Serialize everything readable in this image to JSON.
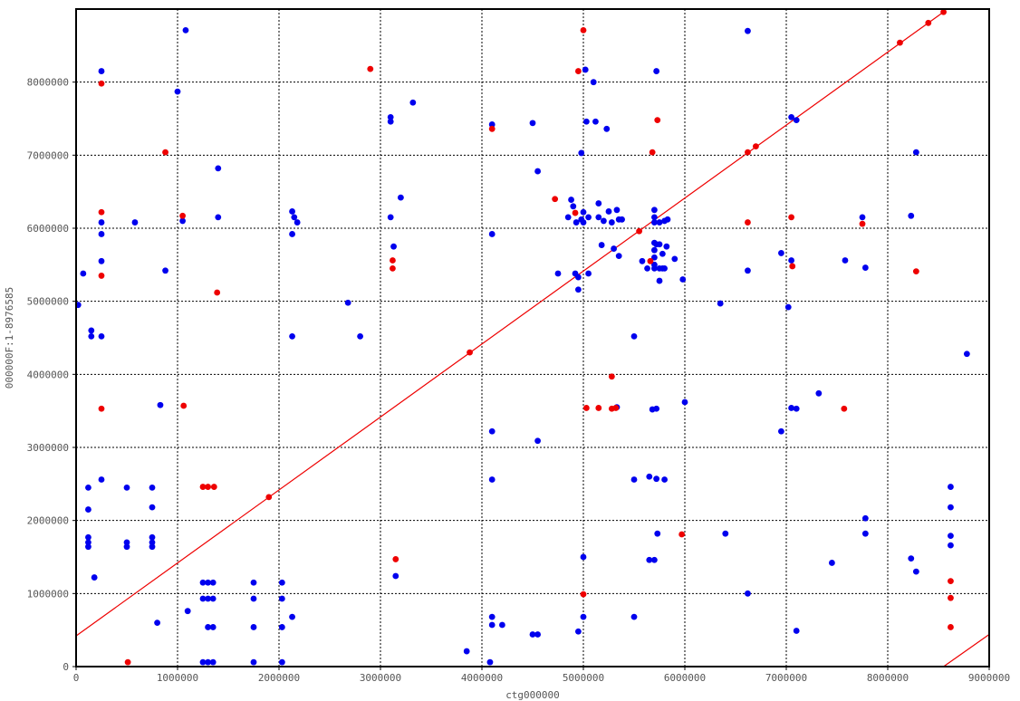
{
  "chart_data": {
    "type": "scatter",
    "title": "",
    "xlabel": "ctg000000",
    "ylabel": "000000F:1-8976585",
    "xlim": [
      0,
      9000000
    ],
    "ylim": [
      0,
      9000000
    ],
    "x_ticks": [
      0,
      1000000,
      2000000,
      3000000,
      4000000,
      5000000,
      6000000,
      7000000,
      8000000,
      9000000
    ],
    "y_ticks": [
      0,
      1000000,
      2000000,
      3000000,
      4000000,
      5000000,
      6000000,
      7000000,
      8000000
    ],
    "x_tick_labels": [
      "0",
      "1000000",
      "2000000",
      "3000000",
      "4000000",
      "5000000",
      "6000000",
      "7000000",
      "8000000",
      "9000000"
    ],
    "y_tick_labels": [
      "0",
      "1000000",
      "2000000",
      "3000000",
      "4000000",
      "5000000",
      "6000000",
      "7000000",
      "8000000"
    ],
    "grid": true,
    "colors": {
      "forward": "#0000ee",
      "reverse": "#ee0000",
      "grid": "#000000",
      "frame": "#000000"
    },
    "lines": [
      {
        "color": "#ee0000",
        "points": [
          [
            0,
            420000
          ],
          [
            8550000,
            8960000
          ]
        ]
      },
      {
        "color": "#ee0000",
        "points": [
          [
            8550000,
            0
          ],
          [
            9000000,
            440000
          ]
        ]
      }
    ],
    "series": [
      {
        "color": "#0000ee",
        "points": [
          [
            20000,
            4950000
          ],
          [
            70000,
            5380000
          ],
          [
            120000,
            2450000
          ],
          [
            120000,
            2150000
          ],
          [
            120000,
            1770000
          ],
          [
            120000,
            1700000
          ],
          [
            120000,
            1640000
          ],
          [
            150000,
            4600000
          ],
          [
            150000,
            4520000
          ],
          [
            180000,
            1220000
          ],
          [
            250000,
            8150000
          ],
          [
            250000,
            6080000
          ],
          [
            250000,
            5920000
          ],
          [
            250000,
            5550000
          ],
          [
            250000,
            4520000
          ],
          [
            250000,
            2560000
          ],
          [
            500000,
            2450000
          ],
          [
            500000,
            1700000
          ],
          [
            500000,
            1640000
          ],
          [
            580000,
            6080000
          ],
          [
            750000,
            2450000
          ],
          [
            750000,
            2180000
          ],
          [
            750000,
            1770000
          ],
          [
            750000,
            1700000
          ],
          [
            750000,
            1640000
          ],
          [
            800000,
            600000
          ],
          [
            830000,
            3580000
          ],
          [
            880000,
            5420000
          ],
          [
            1000000,
            7870000
          ],
          [
            1050000,
            6100000
          ],
          [
            1080000,
            8710000
          ],
          [
            1100000,
            760000
          ],
          [
            1250000,
            1150000
          ],
          [
            1250000,
            930000
          ],
          [
            1250000,
            60000
          ],
          [
            1300000,
            1150000
          ],
          [
            1300000,
            930000
          ],
          [
            1300000,
            540000
          ],
          [
            1300000,
            60000
          ],
          [
            1350000,
            1150000
          ],
          [
            1350000,
            930000
          ],
          [
            1350000,
            540000
          ],
          [
            1350000,
            60000
          ],
          [
            1400000,
            6820000
          ],
          [
            1400000,
            6150000
          ],
          [
            1750000,
            1150000
          ],
          [
            1750000,
            930000
          ],
          [
            1750000,
            540000
          ],
          [
            1750000,
            60000
          ],
          [
            2030000,
            1150000
          ],
          [
            2030000,
            930000
          ],
          [
            2030000,
            540000
          ],
          [
            2030000,
            60000
          ],
          [
            2130000,
            6230000
          ],
          [
            2150000,
            6150000
          ],
          [
            2130000,
            5920000
          ],
          [
            2180000,
            6080000
          ],
          [
            2130000,
            4520000
          ],
          [
            2130000,
            680000
          ],
          [
            2680000,
            4980000
          ],
          [
            2800000,
            4520000
          ],
          [
            3100000,
            7520000
          ],
          [
            3100000,
            7460000
          ],
          [
            3100000,
            6150000
          ],
          [
            3130000,
            5750000
          ],
          [
            3200000,
            6420000
          ],
          [
            3320000,
            7720000
          ],
          [
            3150000,
            1240000
          ],
          [
            3850000,
            210000
          ],
          [
            4080000,
            60000
          ],
          [
            4100000,
            7420000
          ],
          [
            4100000,
            5920000
          ],
          [
            4100000,
            3220000
          ],
          [
            4100000,
            2560000
          ],
          [
            4100000,
            680000
          ],
          [
            4100000,
            570000
          ],
          [
            4200000,
            570000
          ],
          [
            4500000,
            7440000
          ],
          [
            4500000,
            440000
          ],
          [
            4550000,
            440000
          ],
          [
            4550000,
            6780000
          ],
          [
            4550000,
            3090000
          ],
          [
            4750000,
            5380000
          ],
          [
            4850000,
            6150000
          ],
          [
            4880000,
            6390000
          ],
          [
            4900000,
            6300000
          ],
          [
            4920000,
            5380000
          ],
          [
            4930000,
            6080000
          ],
          [
            4950000,
            5330000
          ],
          [
            4950000,
            5160000
          ],
          [
            4950000,
            480000
          ],
          [
            4980000,
            7030000
          ],
          [
            4980000,
            6120000
          ],
          [
            5000000,
            6220000
          ],
          [
            5000000,
            6080000
          ],
          [
            5000000,
            1500000
          ],
          [
            5000000,
            680000
          ],
          [
            5020000,
            8170000
          ],
          [
            5030000,
            7460000
          ],
          [
            5050000,
            6150000
          ],
          [
            5050000,
            5380000
          ],
          [
            5100000,
            8000000
          ],
          [
            5120000,
            7460000
          ],
          [
            5150000,
            6340000
          ],
          [
            5150000,
            6150000
          ],
          [
            5180000,
            5770000
          ],
          [
            5200000,
            6100000
          ],
          [
            5230000,
            7360000
          ],
          [
            5250000,
            6230000
          ],
          [
            5280000,
            6080000
          ],
          [
            5300000,
            5720000
          ],
          [
            5330000,
            6250000
          ],
          [
            5330000,
            3550000
          ],
          [
            5350000,
            6120000
          ],
          [
            5350000,
            5620000
          ],
          [
            5380000,
            6120000
          ],
          [
            5500000,
            4520000
          ],
          [
            5500000,
            2560000
          ],
          [
            5500000,
            680000
          ],
          [
            5580000,
            5550000
          ],
          [
            5630000,
            5450000
          ],
          [
            5650000,
            2600000
          ],
          [
            5650000,
            1460000
          ],
          [
            5680000,
            3520000
          ],
          [
            5700000,
            6250000
          ],
          [
            5700000,
            6150000
          ],
          [
            5700000,
            6080000
          ],
          [
            5700000,
            5800000
          ],
          [
            5700000,
            5700000
          ],
          [
            5700000,
            5600000
          ],
          [
            5700000,
            5500000
          ],
          [
            5700000,
            5450000
          ],
          [
            5700000,
            1460000
          ],
          [
            5720000,
            8150000
          ],
          [
            5720000,
            5780000
          ],
          [
            5720000,
            3530000
          ],
          [
            5720000,
            2570000
          ],
          [
            5730000,
            1820000
          ],
          [
            5750000,
            6080000
          ],
          [
            5750000,
            5780000
          ],
          [
            5750000,
            5450000
          ],
          [
            5750000,
            5280000
          ],
          [
            5780000,
            5650000
          ],
          [
            5780000,
            5450000
          ],
          [
            5800000,
            6100000
          ],
          [
            5800000,
            5450000
          ],
          [
            5800000,
            2560000
          ],
          [
            5820000,
            5750000
          ],
          [
            5830000,
            6120000
          ],
          [
            5900000,
            5580000
          ],
          [
            5980000,
            5300000
          ],
          [
            6000000,
            3620000
          ],
          [
            6350000,
            4970000
          ],
          [
            6400000,
            1820000
          ],
          [
            6620000,
            8700000
          ],
          [
            6620000,
            5420000
          ],
          [
            6620000,
            1000000
          ],
          [
            6950000,
            5660000
          ],
          [
            6950000,
            3220000
          ],
          [
            7020000,
            4920000
          ],
          [
            7050000,
            7520000
          ],
          [
            7050000,
            5560000
          ],
          [
            7050000,
            3540000
          ],
          [
            7100000,
            7480000
          ],
          [
            7100000,
            3530000
          ],
          [
            7100000,
            490000
          ],
          [
            7320000,
            3740000
          ],
          [
            7450000,
            1420000
          ],
          [
            7580000,
            5560000
          ],
          [
            7750000,
            6150000
          ],
          [
            7780000,
            5460000
          ],
          [
            7780000,
            2030000
          ],
          [
            7780000,
            1820000
          ],
          [
            8230000,
            6170000
          ],
          [
            8230000,
            1480000
          ],
          [
            8280000,
            7040000
          ],
          [
            8280000,
            1300000
          ],
          [
            8620000,
            2460000
          ],
          [
            8620000,
            2180000
          ],
          [
            8620000,
            1790000
          ],
          [
            8620000,
            1660000
          ],
          [
            8780000,
            4280000
          ]
        ]
      },
      {
        "color": "#ee0000",
        "points": [
          [
            250000,
            7980000
          ],
          [
            250000,
            6220000
          ],
          [
            250000,
            5350000
          ],
          [
            250000,
            3530000
          ],
          [
            510000,
            60000
          ],
          [
            880000,
            7040000
          ],
          [
            1050000,
            6170000
          ],
          [
            1060000,
            3570000
          ],
          [
            1250000,
            2460000
          ],
          [
            1300000,
            2460000
          ],
          [
            1360000,
            2460000
          ],
          [
            1390000,
            5120000
          ],
          [
            1900000,
            2320000
          ],
          [
            2900000,
            8180000
          ],
          [
            3120000,
            5560000
          ],
          [
            3120000,
            5450000
          ],
          [
            3150000,
            1470000
          ],
          [
            3880000,
            4300000
          ],
          [
            4100000,
            7360000
          ],
          [
            4720000,
            6400000
          ],
          [
            4920000,
            6210000
          ],
          [
            4950000,
            8150000
          ],
          [
            5000000,
            8710000
          ],
          [
            5000000,
            990000
          ],
          [
            5030000,
            3540000
          ],
          [
            5150000,
            3540000
          ],
          [
            5280000,
            3970000
          ],
          [
            5280000,
            3530000
          ],
          [
            5320000,
            3540000
          ],
          [
            5550000,
            5960000
          ],
          [
            5660000,
            5550000
          ],
          [
            5680000,
            7040000
          ],
          [
            5730000,
            7480000
          ],
          [
            5970000,
            1810000
          ],
          [
            6620000,
            6080000
          ],
          [
            6620000,
            7040000
          ],
          [
            6700000,
            7120000
          ],
          [
            7050000,
            6150000
          ],
          [
            7060000,
            5480000
          ],
          [
            7570000,
            3530000
          ],
          [
            7750000,
            6060000
          ],
          [
            8120000,
            8540000
          ],
          [
            8280000,
            5410000
          ],
          [
            8400000,
            8810000
          ],
          [
            8620000,
            1170000
          ],
          [
            8620000,
            940000
          ],
          [
            8620000,
            540000
          ],
          [
            8550000,
            8960000
          ]
        ]
      }
    ]
  }
}
